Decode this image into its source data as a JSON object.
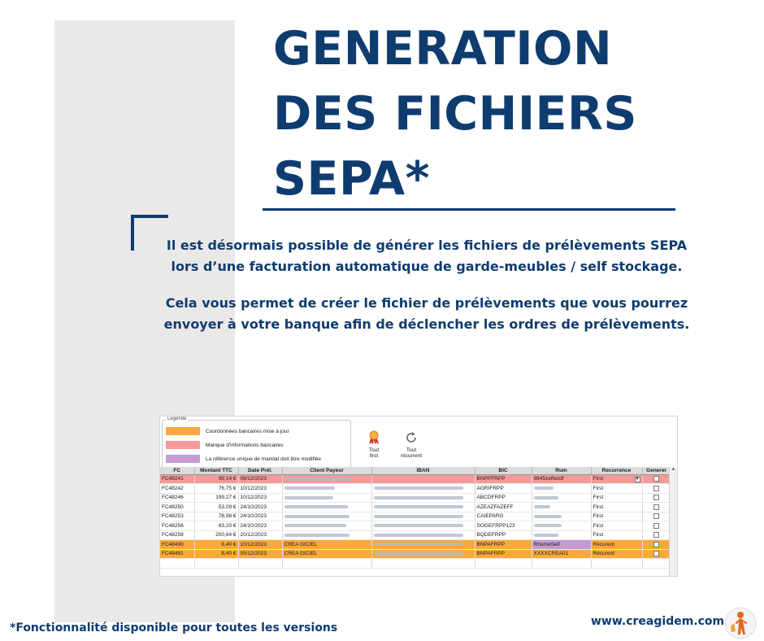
{
  "title": {
    "line1": "GENERATION",
    "line2": "DES FICHIERS",
    "line3": "SEPA*"
  },
  "intro": {
    "p1": "Il est désormais possible de générer les fichiers de prélèvements SEPA lors d’une facturation automatique de garde-meubles / self stockage.",
    "p2": "Cela vous permet de créer le fichier de prélèvements que vous pourrez envoyer à votre banque afin de déclencher les ordres de prélèvements."
  },
  "screenshot": {
    "legend": {
      "title": "Legende",
      "items": [
        {
          "label": "Coordonnées bancaires mise à jour",
          "color": "#f9a93b"
        },
        {
          "label": "Manque d'informations bancaires",
          "color": "#f59a9a"
        },
        {
          "label": "La référence unique de mandat doit être modifiée",
          "color": "#c79ad3"
        }
      ]
    },
    "buttons": {
      "first_l1": "Tout",
      "first_l2": "first",
      "rec_l1": "Tout",
      "rec_l2": "récurrent"
    },
    "columns": {
      "fc": "FC",
      "montant": "Montant TTC",
      "date": "Date Prél.",
      "client": "Client Payeur",
      "iban": "IBAN",
      "bic": "BIC",
      "rum": "Rum",
      "recurrence": "Recurrence",
      "generer": "Generer"
    },
    "rows": [
      {
        "fc": "FC48241",
        "montant": "99,14 €",
        "date": "06/12/2023",
        "client": "",
        "bic": "BNPPFRPP",
        "rum": "9845zeffezdf",
        "recurrence": "First"
      },
      {
        "fc": "FC48242",
        "montant": "76,75 €",
        "date": "10/12/2023",
        "client": "",
        "bic": "AGRIFRPP",
        "rum": "",
        "recurrence": "First"
      },
      {
        "fc": "FC48246",
        "montant": "199,27 €",
        "date": "10/12/2023",
        "client": "",
        "bic": "ABCDFRPP",
        "rum": "",
        "recurrence": "First"
      },
      {
        "fc": "FC48250",
        "montant": "53,09 €",
        "date": "24/10/2023",
        "client": "",
        "bic": "AZEAZFAZEFF",
        "rum": "",
        "recurrence": "First"
      },
      {
        "fc": "FC48253",
        "montant": "78,98 €",
        "date": "24/10/2023",
        "client": "",
        "bic": "CAIEPARG",
        "rum": "",
        "recurrence": "First"
      },
      {
        "fc": "FC48256",
        "montant": "83,20 €",
        "date": "24/10/2023",
        "client": "",
        "bic": "SOGEFRPP123",
        "rum": "",
        "recurrence": "First"
      },
      {
        "fc": "FC48258",
        "montant": "200,64 €",
        "date": "20/12/2023",
        "client": "",
        "bic": "BQDEFRPP",
        "rum": "",
        "recurrence": "First"
      },
      {
        "fc": "FC48490",
        "montant": "8,40 €",
        "date": "10/12/2023",
        "client": "CREA GICIEL",
        "bic": "BNPAFRPP",
        "rum": "RhumeSelf",
        "recurrence": "Récurent"
      },
      {
        "fc": "FC48491",
        "montant": "8,40 €",
        "date": "05/12/2023",
        "client": "CREA GICIEL",
        "bic": "BNPAFRPP",
        "rum": "XXXXCREA01",
        "recurrence": "Récurent"
      }
    ]
  },
  "footer": {
    "note": "*Fonctionnalité disponible pour toutes les versions",
    "site": "www.creagidem.com"
  }
}
